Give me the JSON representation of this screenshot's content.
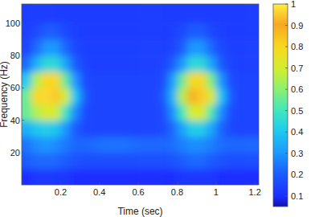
{
  "chart_data": {
    "type": "heatmap",
    "xlabel": "Time (sec)",
    "ylabel": "Frequency (Hz)",
    "x": [
      0.025,
      0.075,
      0.125,
      0.175,
      0.225,
      0.275,
      0.325,
      0.375,
      0.425,
      0.475,
      0.525,
      0.575,
      0.625,
      0.675,
      0.725,
      0.775,
      0.825,
      0.875,
      0.925,
      0.975,
      1.025,
      1.075,
      1.125,
      1.175,
      1.225
    ],
    "y": [
      5,
      15,
      25,
      35,
      45,
      55,
      65,
      75,
      85,
      95,
      105,
      115
    ],
    "values": [
      [
        0.1,
        0.12,
        0.12,
        0.12,
        0.12,
        0.1,
        0.1,
        0.1,
        0.1,
        0.1,
        0.1,
        0.1,
        0.1,
        0.1,
        0.1,
        0.1,
        0.12,
        0.12,
        0.12,
        0.12,
        0.1,
        0.1,
        0.1,
        0.1,
        0.1
      ],
      [
        0.2,
        0.22,
        0.22,
        0.22,
        0.2,
        0.18,
        0.17,
        0.17,
        0.17,
        0.17,
        0.17,
        0.17,
        0.17,
        0.17,
        0.17,
        0.18,
        0.2,
        0.22,
        0.22,
        0.2,
        0.18,
        0.17,
        0.17,
        0.17,
        0.17
      ],
      [
        0.24,
        0.28,
        0.3,
        0.28,
        0.25,
        0.22,
        0.22,
        0.23,
        0.24,
        0.24,
        0.24,
        0.23,
        0.22,
        0.22,
        0.22,
        0.23,
        0.26,
        0.28,
        0.28,
        0.26,
        0.23,
        0.22,
        0.22,
        0.22,
        0.22
      ],
      [
        0.35,
        0.4,
        0.42,
        0.4,
        0.3,
        0.2,
        0.16,
        0.15,
        0.15,
        0.15,
        0.15,
        0.15,
        0.15,
        0.15,
        0.16,
        0.22,
        0.32,
        0.42,
        0.42,
        0.33,
        0.22,
        0.16,
        0.15,
        0.15,
        0.15
      ],
      [
        0.55,
        0.65,
        0.72,
        0.7,
        0.5,
        0.28,
        0.17,
        0.15,
        0.15,
        0.15,
        0.15,
        0.15,
        0.15,
        0.15,
        0.16,
        0.28,
        0.5,
        0.7,
        0.72,
        0.52,
        0.28,
        0.17,
        0.15,
        0.15,
        0.15
      ],
      [
        0.55,
        0.8,
        0.97,
        0.95,
        0.7,
        0.4,
        0.2,
        0.15,
        0.15,
        0.15,
        0.15,
        0.15,
        0.15,
        0.15,
        0.18,
        0.35,
        0.65,
        0.92,
        0.95,
        0.72,
        0.4,
        0.2,
        0.15,
        0.15,
        0.15
      ],
      [
        0.4,
        0.65,
        0.8,
        0.8,
        0.55,
        0.3,
        0.17,
        0.15,
        0.15,
        0.15,
        0.15,
        0.15,
        0.15,
        0.15,
        0.16,
        0.3,
        0.55,
        0.78,
        0.8,
        0.58,
        0.3,
        0.17,
        0.15,
        0.15,
        0.15
      ],
      [
        0.22,
        0.35,
        0.45,
        0.45,
        0.33,
        0.2,
        0.15,
        0.14,
        0.14,
        0.14,
        0.14,
        0.14,
        0.14,
        0.14,
        0.15,
        0.2,
        0.3,
        0.45,
        0.45,
        0.33,
        0.2,
        0.15,
        0.14,
        0.14,
        0.14
      ],
      [
        0.15,
        0.22,
        0.3,
        0.3,
        0.22,
        0.16,
        0.14,
        0.14,
        0.14,
        0.14,
        0.14,
        0.14,
        0.14,
        0.14,
        0.14,
        0.15,
        0.2,
        0.3,
        0.3,
        0.22,
        0.16,
        0.14,
        0.14,
        0.14,
        0.14
      ],
      [
        0.14,
        0.16,
        0.2,
        0.2,
        0.16,
        0.14,
        0.13,
        0.13,
        0.13,
        0.13,
        0.13,
        0.13,
        0.13,
        0.13,
        0.13,
        0.14,
        0.16,
        0.2,
        0.2,
        0.16,
        0.14,
        0.13,
        0.13,
        0.13,
        0.13
      ],
      [
        0.13,
        0.13,
        0.13,
        0.13,
        0.13,
        0.13,
        0.13,
        0.13,
        0.13,
        0.13,
        0.13,
        0.13,
        0.13,
        0.13,
        0.13,
        0.13,
        0.13,
        0.13,
        0.13,
        0.13,
        0.13,
        0.13,
        0.13,
        0.13,
        0.13
      ],
      [
        0.13,
        0.13,
        0.13,
        0.13,
        0.13,
        0.13,
        0.13,
        0.13,
        0.13,
        0.13,
        0.13,
        0.13,
        0.13,
        0.13,
        0.13,
        0.13,
        0.13,
        0.13,
        0.13,
        0.13,
        0.13,
        0.13,
        0.13,
        0.13,
        0.13
      ]
    ],
    "xlim": [
      0,
      1.22
    ],
    "ylim": [
      0,
      112
    ],
    "xticks": [
      0.2,
      0.4,
      0.6,
      0.8,
      1,
      1.2
    ],
    "yticks": [
      20,
      40,
      60,
      80,
      100
    ],
    "colorbar": {
      "range": [
        0.05,
        1
      ],
      "ticks": [
        0.1,
        0.2,
        0.3,
        0.4,
        0.5,
        0.6,
        0.7,
        0.8,
        0.9,
        1
      ]
    }
  }
}
